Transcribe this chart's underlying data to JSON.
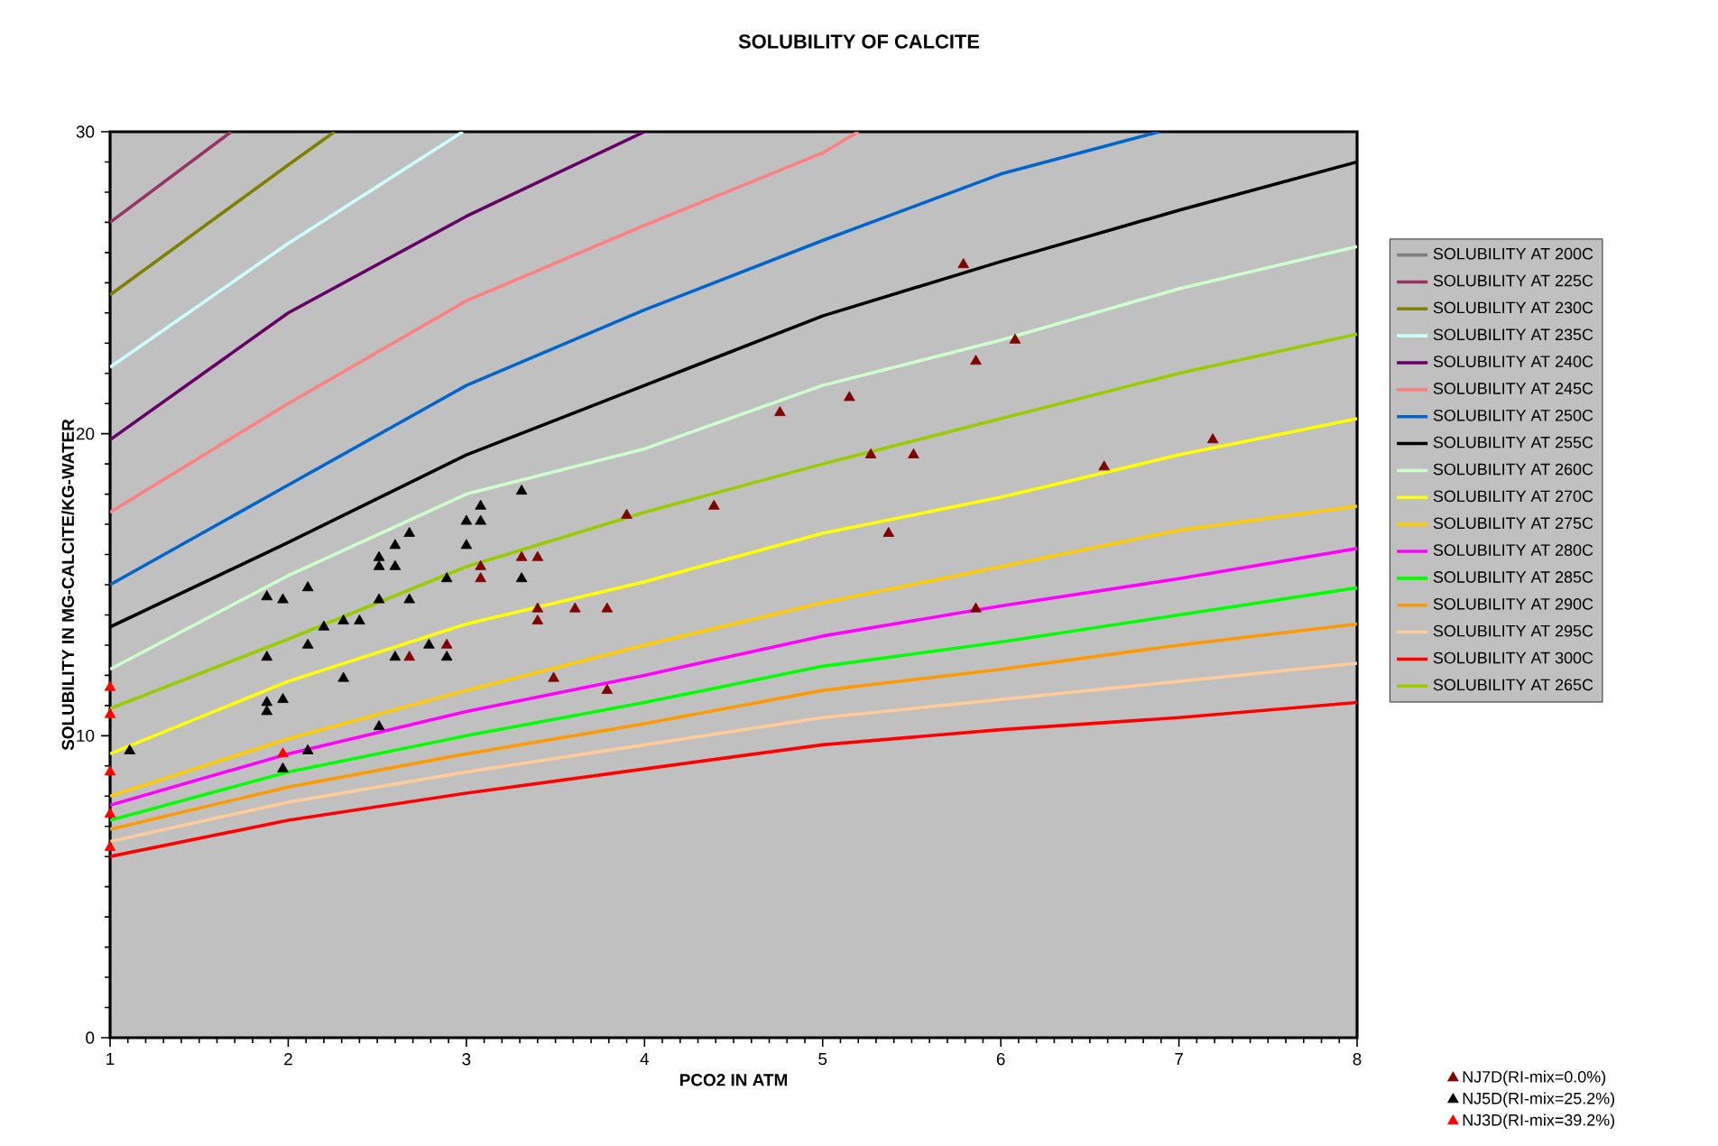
{
  "chart_data": {
    "type": "line",
    "title": "SOLUBILITY OF CALCITE",
    "xlabel": "PCO2 IN ATM",
    "ylabel": "SOLUBILITY IN MG-CALCITE/KG-WATER",
    "xlim": [
      1,
      8
    ],
    "xticks": [
      1,
      2,
      3,
      4,
      5,
      6,
      7,
      8
    ],
    "ylim": [
      0,
      30
    ],
    "yticks": [
      0,
      10,
      20,
      30
    ],
    "legend": "right",
    "marker": "none",
    "series": [
      {
        "name": "SOLUBILITY AT 200C",
        "color": "#808080"
      },
      {
        "name": "SOLUBILITY AT 225C",
        "color": "#993366",
        "x": [
          1,
          1.68
        ],
        "values": [
          27.0,
          30
        ]
      },
      {
        "name": "SOLUBILITY AT 230C",
        "color": "#808000",
        "x": [
          1,
          2,
          2.26
        ],
        "values": [
          24.6,
          28.9,
          30
        ]
      },
      {
        "name": "SOLUBILITY AT 235C",
        "color": "#ccffff",
        "x": [
          1,
          2,
          2.98
        ],
        "values": [
          22.2,
          26.3,
          30
        ]
      },
      {
        "name": "SOLUBILITY AT 240C",
        "color": "#660066",
        "x": [
          1,
          2,
          3,
          4
        ],
        "values": [
          19.8,
          24.0,
          27.2,
          30
        ]
      },
      {
        "name": "SOLUBILITY AT 245C",
        "color": "#ff8080",
        "x": [
          1,
          2,
          3,
          4,
          5,
          5.2
        ],
        "values": [
          17.4,
          21.0,
          24.4,
          26.9,
          29.3,
          30
        ]
      },
      {
        "name": "SOLUBILITY AT 250C",
        "color": "#0066cc",
        "x": [
          1,
          2,
          3,
          4,
          5,
          6,
          6.89
        ],
        "values": [
          15.0,
          18.3,
          21.6,
          24.1,
          26.4,
          28.6,
          30
        ]
      },
      {
        "name": "SOLUBILITY AT 255C",
        "color": "#000000",
        "x": [
          1,
          2,
          3,
          4,
          5,
          6,
          7,
          8
        ],
        "values": [
          13.6,
          16.4,
          19.3,
          21.6,
          23.9,
          25.7,
          27.4,
          29.0
        ]
      },
      {
        "name": "SOLUBILITY AT 260C",
        "color": "#ccffcc",
        "x": [
          1,
          2,
          3,
          4,
          5,
          6,
          7,
          8
        ],
        "values": [
          12.2,
          15.3,
          18.0,
          19.5,
          21.6,
          23.1,
          24.8,
          26.2
        ]
      },
      {
        "name": "SOLUBILITY AT 270C",
        "color": "#ffff00",
        "x": [
          1,
          2,
          3,
          4,
          5,
          6,
          7,
          8
        ],
        "values": [
          9.4,
          11.8,
          13.7,
          15.1,
          16.7,
          17.9,
          19.3,
          20.5
        ]
      },
      {
        "name": "SOLUBILITY AT 275C",
        "color": "#ffcc00",
        "x": [
          1,
          2,
          3,
          4,
          5,
          6,
          7,
          8
        ],
        "values": [
          8.0,
          9.9,
          11.5,
          13.0,
          14.4,
          15.6,
          16.8,
          17.6
        ]
      },
      {
        "name": "SOLUBILITY AT 280C",
        "color": "#ff00ff",
        "x": [
          1,
          2,
          3,
          4,
          5,
          6,
          7,
          8
        ],
        "values": [
          7.7,
          9.4,
          10.8,
          12.0,
          13.3,
          14.3,
          15.2,
          16.2
        ]
      },
      {
        "name": "SOLUBILITY AT 285C",
        "color": "#00ff00",
        "x": [
          1,
          2,
          3,
          4,
          5,
          6,
          7,
          8
        ],
        "values": [
          7.2,
          8.8,
          10.0,
          11.1,
          12.3,
          13.1,
          14.0,
          14.9
        ]
      },
      {
        "name": "SOLUBILITY AT 290C",
        "color": "#ff9900",
        "x": [
          1,
          2,
          3,
          4,
          5,
          6,
          7,
          8
        ],
        "values": [
          6.9,
          8.3,
          9.4,
          10.4,
          11.5,
          12.2,
          13.0,
          13.7
        ]
      },
      {
        "name": "SOLUBILITY AT 295C",
        "color": "#ffcc99",
        "x": [
          1,
          2,
          3,
          4,
          5,
          6,
          7,
          8
        ],
        "values": [
          6.5,
          7.8,
          8.8,
          9.7,
          10.6,
          11.2,
          11.8,
          12.4
        ]
      },
      {
        "name": "SOLUBILITY AT 300C",
        "color": "#ff0000",
        "x": [
          1,
          2,
          3,
          4,
          5,
          6,
          7,
          8
        ],
        "values": [
          6.0,
          7.2,
          8.1,
          8.9,
          9.7,
          10.2,
          10.6,
          11.1
        ]
      },
      {
        "name": "SOLUBILITY AT 265C",
        "color": "#99cc00",
        "x": [
          1,
          2,
          3,
          4,
          5,
          6,
          7,
          8
        ],
        "values": [
          10.9,
          13.2,
          15.6,
          17.4,
          19.0,
          20.5,
          22.0,
          23.3
        ]
      },
      {
        "name": "NJ7D(RI-mix=0.0%)",
        "type": "scatter",
        "marker": "triangle",
        "color": "#800000",
        "x": [
          2.68,
          2.89,
          3.08,
          3.08,
          3.31,
          3.4,
          3.4,
          3.4,
          3.61,
          3.79,
          3.49,
          3.79,
          3.9,
          4.39,
          4.76,
          5.15,
          5.27,
          5.51,
          5.37,
          5.79,
          5.86,
          6.08,
          5.86,
          6.58,
          7.19
        ],
        "values": [
          12.6,
          13.0,
          15.6,
          15.2,
          15.9,
          15.9,
          14.2,
          13.8,
          14.2,
          14.2,
          11.9,
          11.5,
          17.3,
          17.6,
          20.7,
          21.2,
          19.3,
          19.3,
          16.7,
          25.6,
          22.4,
          23.1,
          14.2,
          18.9,
          19.8
        ]
      },
      {
        "name": "NJ5D(RI-mix=25.2%)",
        "type": "scatter",
        "marker": "triangle",
        "color": "#000000",
        "x": [
          1.11,
          1.88,
          1.97,
          2.11,
          1.88,
          1.88,
          1.88,
          1.97,
          1.97,
          2.11,
          2.11,
          2.2,
          2.31,
          2.4,
          2.31,
          2.51,
          2.51,
          2.51,
          2.51,
          2.6,
          2.6,
          2.68,
          2.6,
          2.68,
          2.79,
          2.89,
          2.89,
          3.0,
          3.08,
          3.08,
          3.0,
          3.31,
          3.31
        ],
        "values": [
          9.5,
          14.6,
          14.5,
          14.9,
          12.6,
          11.1,
          10.8,
          11.2,
          8.9,
          9.5,
          13.0,
          13.6,
          13.8,
          13.8,
          11.9,
          15.9,
          15.6,
          14.5,
          10.3,
          16.3,
          15.6,
          16.7,
          12.6,
          14.5,
          13.0,
          12.6,
          15.2,
          17.1,
          17.6,
          17.1,
          16.3,
          18.1,
          15.2
        ]
      },
      {
        "name": "NJ3D(RI-mix=39.2%)",
        "type": "scatter",
        "marker": "triangle",
        "color": "#ff0000",
        "x": [
          1,
          1,
          1,
          1,
          1,
          1.97
        ],
        "values": [
          11.6,
          10.7,
          8.8,
          7.4,
          6.3,
          9.4
        ]
      }
    ]
  }
}
